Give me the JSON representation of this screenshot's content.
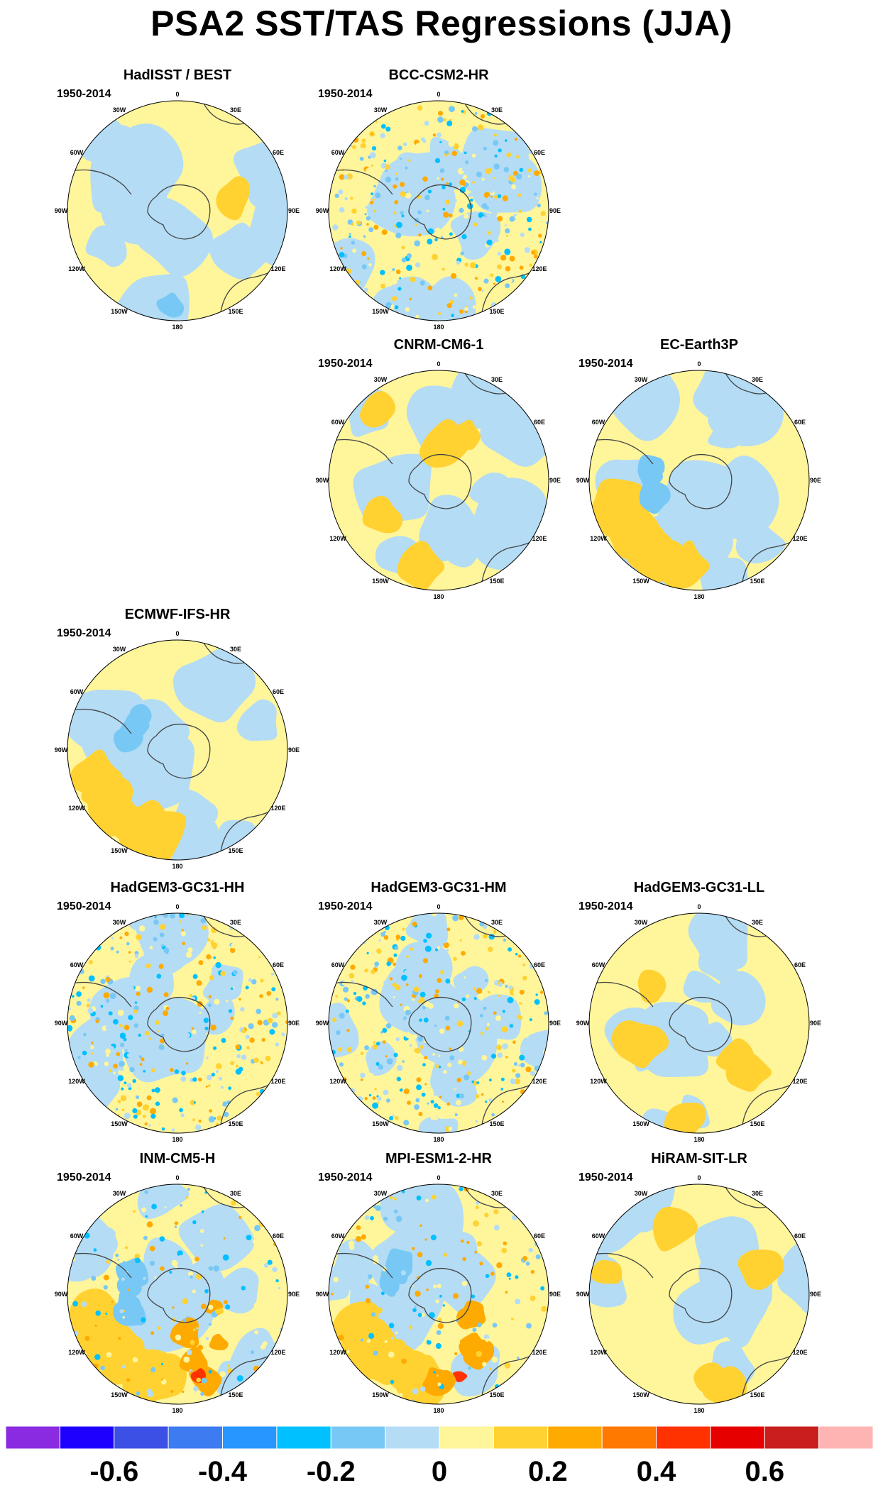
{
  "title": "PSA2 SST/TAS Regressions (JJA)",
  "period": "1950-2014",
  "longitude_labels": [
    "0",
    "30E",
    "60E",
    "90E",
    "120E",
    "150E",
    "180",
    "150W",
    "120W",
    "90W",
    "60W",
    "30W"
  ],
  "panels": [
    {
      "name": "HadISST / BEST",
      "row": 0,
      "col": 0,
      "pattern": "obs"
    },
    {
      "name": "BCC-CSM2-HR",
      "row": 0,
      "col": 1,
      "pattern": "noisy"
    },
    {
      "name": "CNRM-CM6-1",
      "row": 1,
      "col": 1,
      "pattern": "weak"
    },
    {
      "name": "EC-Earth3P",
      "row": 1,
      "col": 2,
      "pattern": "warmband"
    },
    {
      "name": "ECMWF-IFS-HR",
      "row": 2,
      "col": 0,
      "pattern": "warmband"
    },
    {
      "name": "HadGEM3-GC31-HH",
      "row": 3,
      "col": 0,
      "pattern": "noisy"
    },
    {
      "name": "HadGEM3-GC31-HM",
      "row": 3,
      "col": 1,
      "pattern": "noisy"
    },
    {
      "name": "HadGEM3-GC31-LL",
      "row": 3,
      "col": 2,
      "pattern": "weak"
    },
    {
      "name": "INM-CM5-H",
      "row": 4,
      "col": 0,
      "pattern": "strong"
    },
    {
      "name": "MPI-ESM1-2-HR",
      "row": 4,
      "col": 1,
      "pattern": "strong"
    },
    {
      "name": "HiRAM-SIT-LR",
      "row": 4,
      "col": 2,
      "pattern": "weak"
    }
  ],
  "colorbar": {
    "colors": [
      "#8a2be2",
      "#1e00ff",
      "#3c50e6",
      "#3c7cf0",
      "#2896ff",
      "#00c0ff",
      "#78c8f5",
      "#b4dcf5",
      "#fff59b",
      "#ffd232",
      "#ffaa00",
      "#ff7800",
      "#ff3200",
      "#e60000",
      "#c81e1e",
      "#ffb4b4"
    ],
    "labels": [
      "-0.6",
      "-0.4",
      "-0.2",
      "0",
      "0.2",
      "0.4",
      "0.6"
    ],
    "label_values": [
      -0.6,
      -0.4,
      -0.2,
      0,
      0.2,
      0.4,
      0.6
    ],
    "levels": [
      -0.7,
      -0.6,
      -0.5,
      -0.4,
      -0.3,
      -0.2,
      -0.1,
      0,
      0.1,
      0.2,
      0.3,
      0.4,
      0.5,
      0.6,
      0.7
    ]
  }
}
